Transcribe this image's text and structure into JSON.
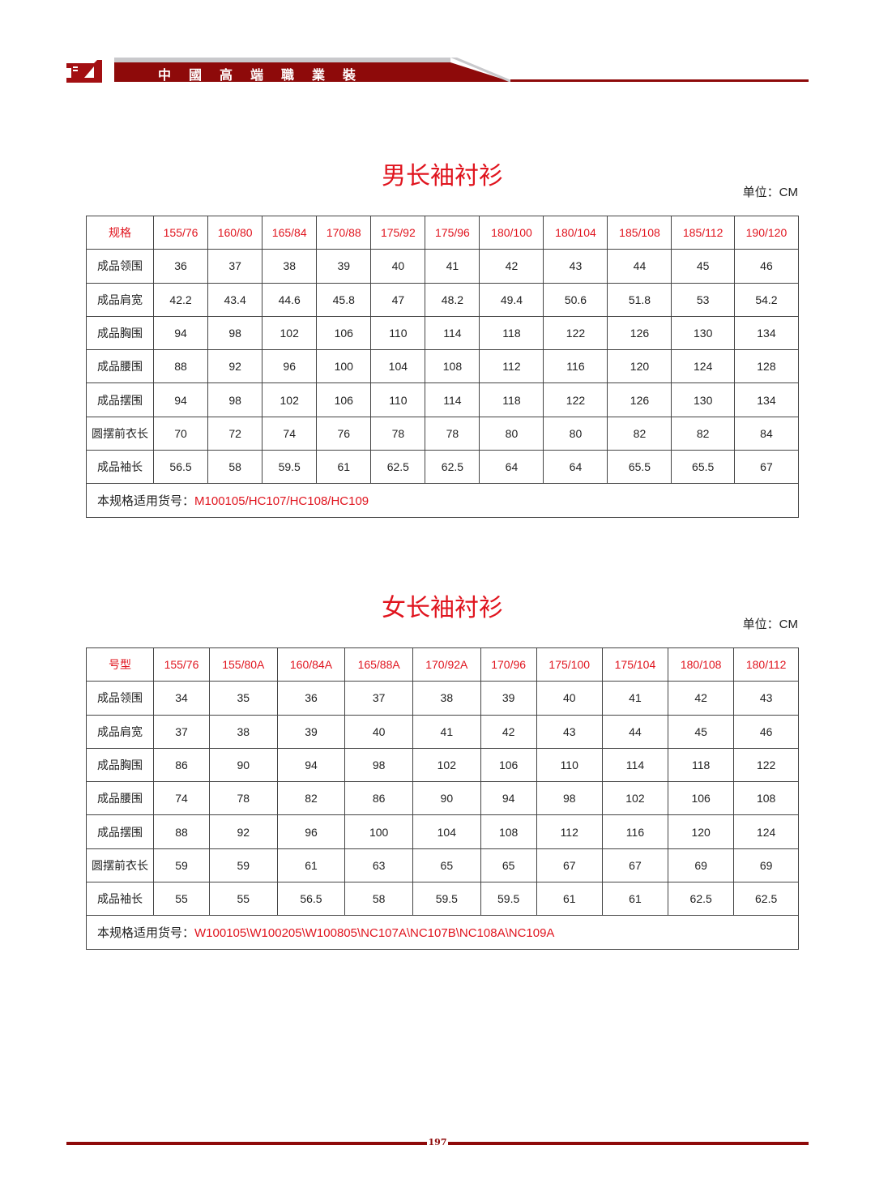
{
  "header": {
    "brand": "中國高端職業裝",
    "accent": "#8e0a0a"
  },
  "tables": [
    {
      "title": "男长袖衬衫",
      "unit": "单位：CM",
      "header": [
        "规格",
        "155/76",
        "160/80",
        "165/84",
        "170/88",
        "175/92",
        "175/96",
        "180/100",
        "180/104",
        "185/108",
        "185/112",
        "190/120"
      ],
      "rows": [
        [
          "成品领围",
          "36",
          "37",
          "38",
          "39",
          "40",
          "41",
          "42",
          "43",
          "44",
          "45",
          "46"
        ],
        [
          "成品肩宽",
          "42.2",
          "43.4",
          "44.6",
          "45.8",
          "47",
          "48.2",
          "49.4",
          "50.6",
          "51.8",
          "53",
          "54.2"
        ],
        [
          "成品胸围",
          "94",
          "98",
          "102",
          "106",
          "110",
          "114",
          "118",
          "122",
          "126",
          "130",
          "134"
        ],
        [
          "成品腰围",
          "88",
          "92",
          "96",
          "100",
          "104",
          "108",
          "112",
          "116",
          "120",
          "124",
          "128"
        ],
        [
          "成品摆围",
          "94",
          "98",
          "102",
          "106",
          "110",
          "114",
          "118",
          "122",
          "126",
          "130",
          "134"
        ],
        [
          "圆摆前衣长",
          "70",
          "72",
          "74",
          "76",
          "78",
          "78",
          "80",
          "80",
          "82",
          "82",
          "84"
        ],
        [
          "成品袖长",
          "56.5",
          "58",
          "59.5",
          "61",
          "62.5",
          "62.5",
          "64",
          "64",
          "65.5",
          "65.5",
          "67"
        ]
      ],
      "note_label": "本规格适用货号：",
      "note_value": "M100105/HC107/HC108/HC109"
    },
    {
      "title": "女长袖衬衫",
      "unit": "单位：CM",
      "header": [
        "号型",
        "155/76",
        "155/80A",
        "160/84A",
        "165/88A",
        "170/92A",
        "170/96",
        "175/100",
        "175/104",
        "180/108",
        "180/112"
      ],
      "rows": [
        [
          "成品领围",
          "34",
          "35",
          "36",
          "37",
          "38",
          "39",
          "40",
          "41",
          "42",
          "43"
        ],
        [
          "成品肩宽",
          "37",
          "38",
          "39",
          "40",
          "41",
          "42",
          "43",
          "44",
          "45",
          "46"
        ],
        [
          "成品胸围",
          "86",
          "90",
          "94",
          "98",
          "102",
          "106",
          "110",
          "114",
          "118",
          "122"
        ],
        [
          "成品腰围",
          "74",
          "78",
          "82",
          "86",
          "90",
          "94",
          "98",
          "102",
          "106",
          "108"
        ],
        [
          "成品摆围",
          "88",
          "92",
          "96",
          "100",
          "104",
          "108",
          "112",
          "116",
          "120",
          "124"
        ],
        [
          "圆摆前衣长",
          "59",
          "59",
          "61",
          "63",
          "65",
          "65",
          "67",
          "67",
          "69",
          "69"
        ],
        [
          "成品袖长",
          "55",
          "55",
          "56.5",
          "58",
          "59.5",
          "59.5",
          "61",
          "61",
          "62.5",
          "62.5"
        ]
      ],
      "note_label": "本规格适用货号：",
      "note_value": "W100105\\W100205\\W100805\\NC107A\\NC107B\\NC108A\\NC109A"
    }
  ],
  "footer": {
    "page_number": "197"
  }
}
